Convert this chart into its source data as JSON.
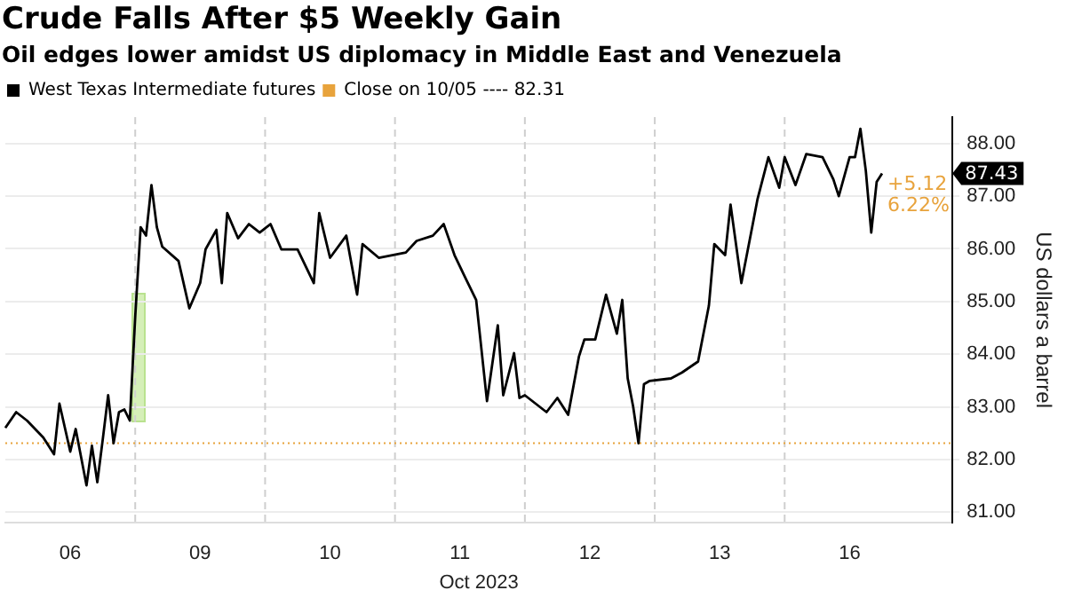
{
  "chart_data": {
    "type": "line",
    "title": "Crude Falls After $5 Weekly Gain",
    "subtitle": "Oil edges lower amidst US diplomacy in Middle East and Venezuela",
    "xlabel": "Oct 2023",
    "ylabel": "US dollars a barrel",
    "categories": [
      null,
      null,
      null,
      null,
      null,
      null,
      null,
      null,
      null,
      null,
      null,
      null,
      "06",
      null,
      null,
      null,
      null,
      null,
      null,
      null,
      null,
      null,
      null,
      null,
      null,
      null,
      null,
      null,
      null,
      null,
      null,
      null,
      null,
      null,
      null,
      null,
      "09",
      null,
      null,
      null,
      null,
      null,
      null,
      null,
      null,
      null,
      null,
      null,
      null,
      null,
      null,
      null,
      null,
      null,
      null,
      null,
      null,
      null,
      null,
      null,
      "10",
      null,
      null,
      null,
      null,
      null,
      null,
      null,
      null,
      null,
      null,
      null,
      null,
      null,
      null,
      null,
      null,
      null,
      null,
      null,
      null,
      null,
      null,
      null,
      "11",
      null,
      null,
      null,
      null,
      null,
      null,
      null,
      null,
      null,
      null,
      null,
      null,
      null,
      null,
      null,
      null,
      null,
      null,
      null,
      null,
      null,
      null,
      null,
      "12",
      null,
      null,
      null,
      null,
      null,
      null,
      null,
      null,
      null,
      null,
      null,
      null,
      null,
      null,
      null,
      null,
      null,
      null,
      null,
      null,
      null,
      null,
      null,
      "13",
      null,
      null,
      null,
      null,
      null,
      null,
      null,
      null,
      null,
      null,
      null,
      null,
      null,
      null,
      null,
      null,
      null,
      null,
      null,
      null,
      null,
      null,
      null,
      "16",
      null,
      null,
      null,
      null,
      null,
      null,
      null,
      null,
      null,
      null,
      null,
      null,
      null,
      null,
      null,
      null,
      null,
      null,
      null
    ],
    "series": [
      {
        "name": "West Texas Intermediate futures",
        "color": "#000000",
        "values": [
          82.6,
          null,
          82.9,
          null,
          82.74,
          null,
          null,
          82.42,
          null,
          82.1,
          83.06,
          null,
          82.15,
          82.58,
          null,
          81.51,
          82.26,
          81.57,
          82.38,
          83.22,
          82.31,
          82.9,
          82.95,
          82.74,
          84.71,
          86.41,
          86.25,
          87.21,
          86.41,
          86.04,
          null,
          null,
          85.77,
          null,
          84.87,
          null,
          85.35,
          85.99,
          null,
          86.36,
          85.35,
          86.68,
          null,
          86.2,
          null,
          86.47,
          null,
          86.31,
          null,
          86.47,
          null,
          85.99,
          null,
          null,
          85.99,
          null,
          null,
          85.35,
          86.68,
          null,
          85.83,
          null,
          null,
          86.25,
          null,
          85.13,
          86.09,
          null,
          null,
          85.83,
          null,
          null,
          null,
          null,
          85.93,
          null,
          86.15,
          null,
          null,
          86.25,
          null,
          86.47,
          null,
          85.88,
          null,
          85.45,
          null,
          85.03,
          null,
          83.11,
          null,
          84.55,
          83.22,
          null,
          84.02,
          83.17,
          83.22,
          null,
          null,
          null,
          82.9,
          null,
          83.17,
          null,
          82.85,
          null,
          83.96,
          84.28,
          null,
          84.28,
          null,
          85.13,
          null,
          84.39,
          85.03,
          83.54,
          83.01,
          82.31,
          83.43,
          83.49,
          null,
          null,
          null,
          83.54,
          null,
          83.65,
          null,
          null,
          83.86,
          null,
          84.92,
          86.09,
          null,
          85.88,
          86.84,
          null,
          85.35,
          null,
          86.41,
          86.95,
          null,
          87.74,
          null,
          87.16,
          87.74,
          null,
          87.21,
          null,
          87.8,
          null,
          null,
          87.74,
          null,
          87.32,
          87.0,
          null,
          87.74,
          87.74,
          88.28,
          87.48,
          86.31,
          87.27,
          87.43,
          null,
          null,
          null,
          null,
          null,
          null,
          null,
          null,
          null,
          null,
          null,
          null,
          null
        ]
      }
    ],
    "ylim": [
      80.8,
      88.5
    ],
    "yticks": [
      {
        "value": 81,
        "label": "81.00"
      },
      {
        "value": 82,
        "label": "82.00"
      },
      {
        "value": 83,
        "label": "83.00"
      },
      {
        "value": 84,
        "label": "84.00"
      },
      {
        "value": 85,
        "label": "85.00"
      },
      {
        "value": 86,
        "label": "86.00"
      },
      {
        "value": 87,
        "label": "87.00"
      },
      {
        "value": 88,
        "label": "88.00"
      }
    ],
    "ref_lines": [
      {
        "axis": "y",
        "value": 82.31,
        "label": "Close on 10/05 ---- 82.31",
        "color": "#e8a33c",
        "line_style": "dotted"
      }
    ],
    "annotations": [
      "87.43",
      "+5.12",
      "6.22%"
    ],
    "grid": true,
    "legend": "top left",
    "marker": "none",
    "line_style": "solid"
  }
}
